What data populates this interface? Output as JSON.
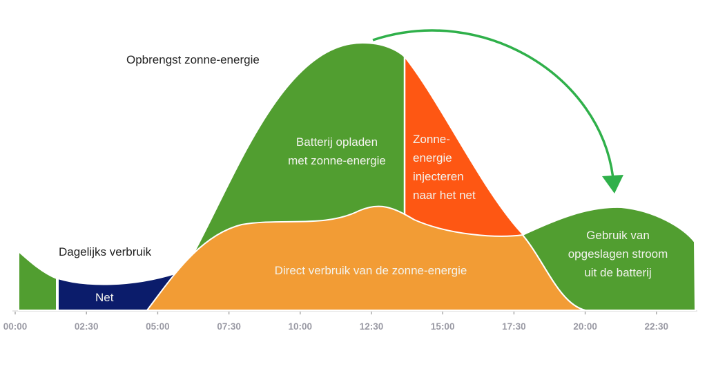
{
  "title": "Opbrengst zonne-energie",
  "consumption_label": "Dagelijks verbruik",
  "regions": {
    "grid": "Net",
    "battery_charge": [
      "Batterij opladen",
      "met zonne-energie"
    ],
    "grid_injection": [
      "Zonne-",
      "energie",
      "injecteren",
      "naar het net"
    ],
    "direct_use": "Direct verbruik van de zonne-energie",
    "battery_use": [
      "Gebruik van",
      "opgeslagen stroom",
      "uit de batterij"
    ]
  },
  "x_ticks": [
    "00:00",
    "02:30",
    "05:00",
    "07:30",
    "10:00",
    "12:30",
    "15:00",
    "17:30",
    "20:00",
    "22:30"
  ],
  "colors": {
    "green": "#519e30",
    "navy": "#0b1c6b",
    "orange": "#f29c35",
    "red": "#fe5713",
    "arrow": "#2fb04a"
  }
}
